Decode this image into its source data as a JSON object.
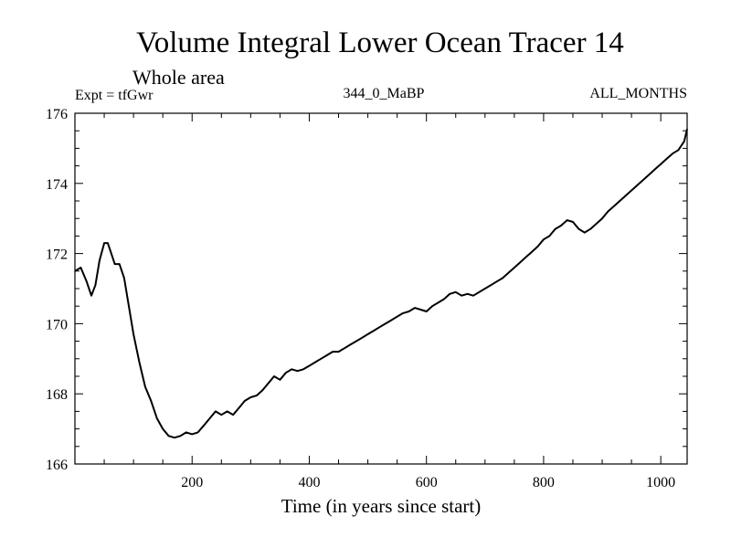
{
  "chart_data": {
    "type": "line",
    "title": "Volume Integral Lower Ocean Tracer 14",
    "subtitle": "Whole area",
    "annotations": {
      "left": "Expt = tfGwr",
      "center": "344_0_MaBP",
      "right": "ALL_MONTHS"
    },
    "xlabel": "Time (in years since start)",
    "ylabel": "",
    "xlim": [
      0,
      1045
    ],
    "ylim": [
      166,
      176
    ],
    "x_ticks": [
      200,
      400,
      600,
      800,
      1000
    ],
    "y_ticks": [
      166,
      168,
      170,
      172,
      174,
      176
    ],
    "grid": false,
    "series": [
      {
        "name": "tracer14",
        "color": "#000000",
        "x": [
          0,
          10,
          20,
          28,
          35,
          42,
          50,
          56,
          62,
          68,
          76,
          84,
          92,
          100,
          110,
          120,
          130,
          140,
          150,
          160,
          170,
          180,
          190,
          200,
          210,
          220,
          230,
          240,
          250,
          260,
          270,
          280,
          290,
          300,
          310,
          320,
          330,
          340,
          350,
          360,
          370,
          380,
          390,
          400,
          410,
          420,
          430,
          440,
          450,
          460,
          470,
          480,
          490,
          500,
          510,
          520,
          530,
          540,
          550,
          560,
          570,
          580,
          590,
          600,
          610,
          620,
          630,
          640,
          650,
          660,
          670,
          680,
          690,
          700,
          710,
          720,
          730,
          740,
          750,
          760,
          770,
          780,
          790,
          800,
          810,
          820,
          830,
          840,
          850,
          860,
          870,
          880,
          890,
          900,
          910,
          920,
          930,
          940,
          950,
          960,
          970,
          980,
          990,
          1000,
          1010,
          1020,
          1030,
          1040,
          1045
        ],
        "values": [
          171.5,
          171.6,
          171.2,
          170.8,
          171.1,
          171.8,
          172.3,
          172.3,
          172.0,
          171.7,
          171.7,
          171.3,
          170.5,
          169.7,
          168.9,
          168.2,
          167.8,
          167.3,
          167.0,
          166.8,
          166.75,
          166.8,
          166.9,
          166.85,
          166.9,
          167.1,
          167.3,
          167.5,
          167.4,
          167.5,
          167.4,
          167.6,
          167.8,
          167.9,
          167.95,
          168.1,
          168.3,
          168.5,
          168.4,
          168.6,
          168.7,
          168.65,
          168.7,
          168.8,
          168.9,
          169.0,
          169.1,
          169.2,
          169.2,
          169.3,
          169.4,
          169.5,
          169.6,
          169.7,
          169.8,
          169.9,
          170.0,
          170.1,
          170.2,
          170.3,
          170.35,
          170.45,
          170.4,
          170.35,
          170.5,
          170.6,
          170.7,
          170.85,
          170.9,
          170.8,
          170.85,
          170.8,
          170.9,
          171.0,
          171.1,
          171.2,
          171.3,
          171.45,
          171.6,
          171.75,
          171.9,
          172.05,
          172.2,
          172.4,
          172.5,
          172.7,
          172.8,
          172.95,
          172.9,
          172.7,
          172.6,
          172.7,
          172.85,
          173.0,
          173.2,
          173.35,
          173.5,
          173.65,
          173.8,
          173.95,
          174.1,
          174.25,
          174.4,
          174.55,
          174.7,
          174.85,
          174.95,
          175.2,
          175.55
        ]
      }
    ]
  }
}
